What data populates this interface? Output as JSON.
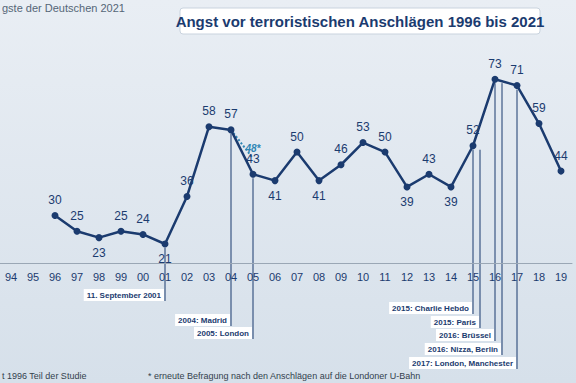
{
  "chart_data": {
    "type": "line",
    "header": "gste der Deutschen 2021",
    "title": "Angst vor terroristischen Anschlägen 1996 bis 2021",
    "categories": [
      "94",
      "95",
      "96",
      "97",
      "98",
      "99",
      "00",
      "01",
      "02",
      "03",
      "04",
      "05",
      "06",
      "07",
      "08",
      "09",
      "10",
      "11",
      "12",
      "13",
      "14",
      "15",
      "16",
      "17",
      "18",
      "19"
    ],
    "values": [
      null,
      null,
      30,
      25,
      23,
      25,
      24,
      21,
      36,
      58,
      57,
      43,
      41,
      50,
      41,
      46,
      53,
      50,
      39,
      43,
      39,
      52,
      73,
      71,
      59,
      44
    ],
    "color": "#1b3b6f",
    "marker": "circle",
    "line_style": "solid",
    "data_labels": true,
    "resurvey": {
      "values": [
        null,
        null,
        null,
        null,
        null,
        null,
        null,
        null,
        null,
        null,
        57,
        48,
        null,
        null,
        null,
        null,
        null,
        null,
        null,
        null,
        null,
        null,
        null,
        null,
        null,
        null
      ],
      "value_labels": [
        null,
        null,
        null,
        null,
        null,
        null,
        null,
        null,
        null,
        null,
        null,
        "48*",
        null,
        null,
        null,
        null,
        null,
        null,
        null,
        null,
        null,
        null,
        null,
        null,
        null,
        null
      ],
      "color": "#2f86b5",
      "line_style": "dotted"
    },
    "events": [
      {
        "category": "01",
        "label": "11. September 2001"
      },
      {
        "category": "04",
        "label": "2004: Madrid"
      },
      {
        "category": "05",
        "label": "2005: London"
      },
      {
        "category": "15",
        "label": "2015: Charlie Hebdo"
      },
      {
        "category": "15",
        "label": "2015: Paris"
      },
      {
        "category": "16",
        "label": "2016: Brüssel"
      },
      {
        "category": "16",
        "label": "2016: Nizza, Berlin"
      },
      {
        "category": "17",
        "label": "2017: London, Manchester"
      }
    ],
    "footnotes": [
      "t 1996 Teil der Studie",
      "* erneute Befragung nach den Anschlägen auf die Londoner U-Bahn"
    ],
    "ylim": [
      15,
      80
    ],
    "tick_labels": "x",
    "grid": false
  }
}
